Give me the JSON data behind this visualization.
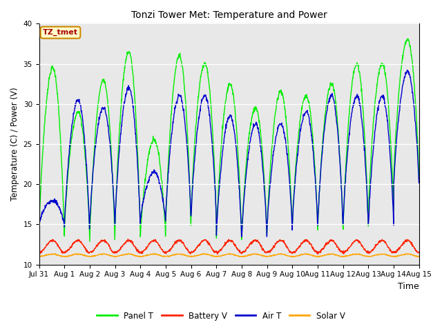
{
  "title": "Tonzi Tower Met: Temperature and Power",
  "xlabel": "Time",
  "ylabel": "Temperature (C) / Power (V)",
  "ylim": [
    10,
    40
  ],
  "yticks": [
    10,
    15,
    20,
    25,
    30,
    35,
    40
  ],
  "xtick_labels": [
    "Jul 31",
    "Aug 1",
    "Aug 2",
    "Aug 3",
    "Aug 4",
    "Aug 5",
    "Aug 6",
    "Aug 7",
    "Aug 8",
    "Aug 9",
    "Aug 10",
    "Aug 11",
    "Aug 12",
    "Aug 13",
    "Aug 14",
    "Aug 15"
  ],
  "legend_labels": [
    "Panel T",
    "Battery V",
    "Air T",
    "Solar V"
  ],
  "legend_colors": [
    "#00EE00",
    "#FF2200",
    "#0000CC",
    "#FFA500"
  ],
  "panel_t_color": "#00EE00",
  "battery_v_color": "#FF2200",
  "air_t_color": "#0000CC",
  "solar_v_color": "#FFA500",
  "annotation_text": "TZ_tmet",
  "annotation_color": "#AA0000",
  "annotation_bg": "#FFFFCC",
  "annotation_border": "#CC8800",
  "bg_color": "#FFFFFF",
  "plot_bg": "#E8E8E8",
  "fig_width": 6.4,
  "fig_height": 4.8,
  "dpi": 100,
  "days": 15,
  "points_per_day": 96,
  "panel_t_peaks": [
    34.5,
    29.0,
    33.0,
    36.5,
    25.5,
    36.0,
    35.0,
    32.5,
    29.5,
    31.5,
    31.0,
    32.5,
    35.0,
    35.0,
    38.0
  ],
  "panel_t_mins": [
    14.0,
    14.0,
    13.0,
    14.5,
    13.5,
    15.0,
    16.0,
    13.5,
    13.5,
    14.5,
    15.0,
    14.5,
    14.5,
    16.5,
    21.0
  ],
  "air_t_peaks": [
    18.0,
    30.5,
    29.5,
    32.0,
    21.5,
    31.0,
    31.0,
    28.5,
    27.5,
    27.5,
    29.0,
    31.0,
    31.0,
    31.0,
    34.0
  ],
  "air_t_mins": [
    15.0,
    14.5,
    15.0,
    15.0,
    15.5,
    16.0,
    16.0,
    13.5,
    13.5,
    14.5,
    15.0,
    15.0,
    15.0,
    15.0,
    20.0
  ],
  "battery_base": 11.5,
  "battery_peak": 13.0,
  "solar_base": 11.0,
  "solar_peak": 11.3,
  "grid_color": "#FFFFFF",
  "grid_lw": 1.0
}
